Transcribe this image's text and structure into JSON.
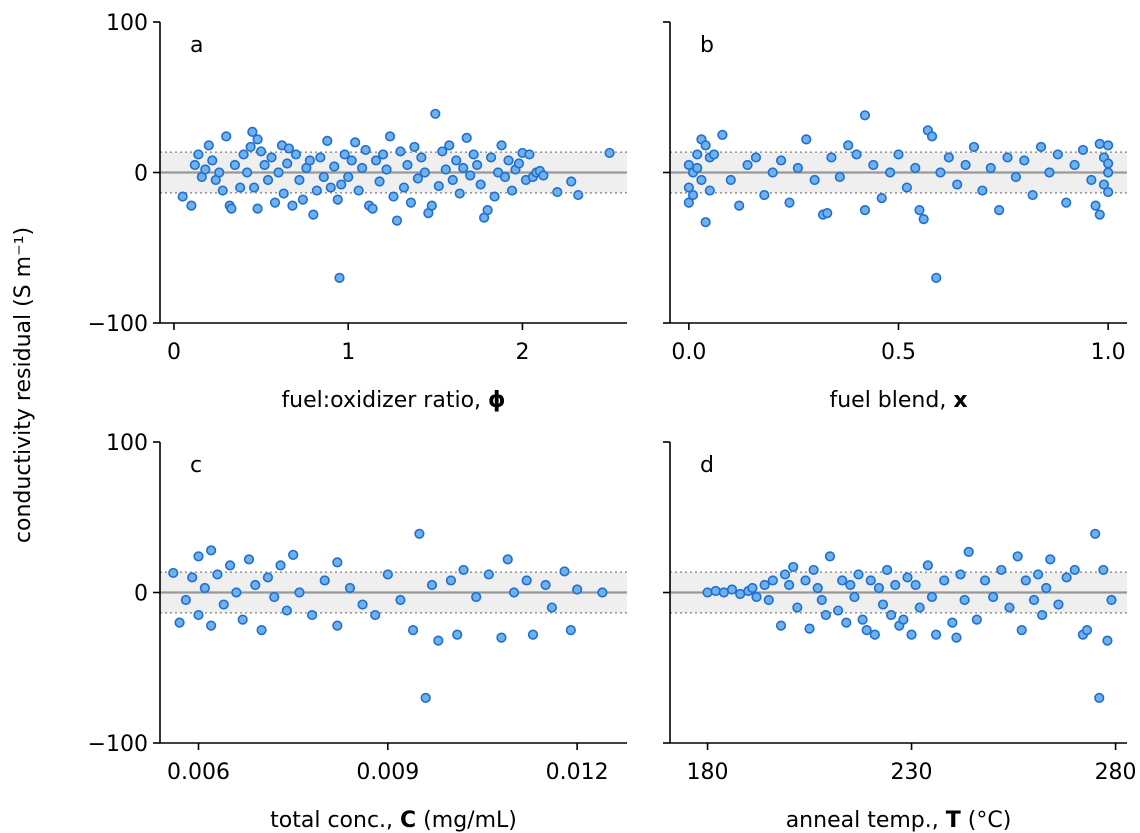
{
  "figure": {
    "ylabel": "conductivity residual (S m⁻¹)"
  },
  "style": {
    "marker_fill": "#6fb1ea",
    "marker_edge": "#1f6fd0",
    "band_fill": "#efefef",
    "zero_line": "#999999",
    "band_line": "#999999"
  },
  "chart_data": [
    {
      "type": "scatter",
      "panel": "a",
      "xlabel_parts": [
        {
          "text": "fuel:oxidizer ratio, ",
          "bold": false
        },
        {
          "text": "ϕ",
          "bold": true
        }
      ],
      "xlim": [
        -0.08,
        2.6
      ],
      "ylim": [
        -100,
        100
      ],
      "xticks": [
        0,
        1,
        2
      ],
      "xtick_labels": [
        "0",
        "1",
        "2"
      ],
      "yticks": [
        -100,
        0,
        100
      ],
      "ytick_labels": [
        "−100",
        "0",
        "100"
      ],
      "show_yticks": true,
      "band": [
        -13.5,
        13.5
      ],
      "points": [
        [
          0.05,
          -16
        ],
        [
          0.1,
          -22
        ],
        [
          0.12,
          5
        ],
        [
          0.14,
          12
        ],
        [
          0.16,
          -3
        ],
        [
          0.18,
          2
        ],
        [
          0.2,
          18
        ],
        [
          0.22,
          8
        ],
        [
          0.24,
          -5
        ],
        [
          0.26,
          0
        ],
        [
          0.28,
          -12
        ],
        [
          0.3,
          24
        ],
        [
          0.32,
          -22
        ],
        [
          0.33,
          -24
        ],
        [
          0.35,
          5
        ],
        [
          0.38,
          -10
        ],
        [
          0.4,
          12
        ],
        [
          0.42,
          0
        ],
        [
          0.44,
          17
        ],
        [
          0.45,
          27
        ],
        [
          0.46,
          -10
        ],
        [
          0.48,
          22
        ],
        [
          0.48,
          -24
        ],
        [
          0.5,
          14
        ],
        [
          0.52,
          5
        ],
        [
          0.54,
          -5
        ],
        [
          0.56,
          10
        ],
        [
          0.58,
          -20
        ],
        [
          0.6,
          0
        ],
        [
          0.62,
          18
        ],
        [
          0.63,
          -14
        ],
        [
          0.65,
          6
        ],
        [
          0.66,
          16
        ],
        [
          0.68,
          -22
        ],
        [
          0.7,
          12
        ],
        [
          0.72,
          -5
        ],
        [
          0.74,
          -18
        ],
        [
          0.76,
          3
        ],
        [
          0.78,
          8
        ],
        [
          0.8,
          -28
        ],
        [
          0.82,
          -12
        ],
        [
          0.84,
          10
        ],
        [
          0.86,
          -3
        ],
        [
          0.88,
          21
        ],
        [
          0.9,
          -10
        ],
        [
          0.92,
          4
        ],
        [
          0.94,
          -18
        ],
        [
          0.95,
          -70
        ],
        [
          0.96,
          -8
        ],
        [
          0.98,
          12
        ],
        [
          1.0,
          -3
        ],
        [
          1.02,
          8
        ],
        [
          1.04,
          20
        ],
        [
          1.06,
          -12
        ],
        [
          1.08,
          3
        ],
        [
          1.1,
          15
        ],
        [
          1.12,
          -22
        ],
        [
          1.14,
          -24
        ],
        [
          1.16,
          8
        ],
        [
          1.18,
          -6
        ],
        [
          1.2,
          12
        ],
        [
          1.22,
          2
        ],
        [
          1.24,
          24
        ],
        [
          1.26,
          -16
        ],
        [
          1.28,
          -32
        ],
        [
          1.3,
          14
        ],
        [
          1.32,
          -10
        ],
        [
          1.34,
          5
        ],
        [
          1.36,
          -20
        ],
        [
          1.38,
          17
        ],
        [
          1.4,
          -4
        ],
        [
          1.42,
          10
        ],
        [
          1.44,
          0
        ],
        [
          1.46,
          -27
        ],
        [
          1.48,
          -22
        ],
        [
          1.5,
          39
        ],
        [
          1.52,
          -9
        ],
        [
          1.54,
          14
        ],
        [
          1.56,
          2
        ],
        [
          1.58,
          18
        ],
        [
          1.6,
          -5
        ],
        [
          1.62,
          8
        ],
        [
          1.64,
          -14
        ],
        [
          1.66,
          3
        ],
        [
          1.68,
          23
        ],
        [
          1.7,
          -2
        ],
        [
          1.72,
          12
        ],
        [
          1.74,
          5
        ],
        [
          1.76,
          -8
        ],
        [
          1.78,
          -30
        ],
        [
          1.8,
          -25
        ],
        [
          1.82,
          10
        ],
        [
          1.84,
          -16
        ],
        [
          1.86,
          0
        ],
        [
          1.88,
          18
        ],
        [
          1.9,
          -3
        ],
        [
          1.92,
          8
        ],
        [
          1.94,
          -12
        ],
        [
          1.96,
          2
        ],
        [
          1.98,
          6
        ],
        [
          2.0,
          13
        ],
        [
          2.02,
          -5
        ],
        [
          2.04,
          12
        ],
        [
          2.06,
          -3
        ],
        [
          2.08,
          0
        ],
        [
          2.1,
          1
        ],
        [
          2.12,
          -2
        ],
        [
          2.2,
          -13
        ],
        [
          2.28,
          -6
        ],
        [
          2.32,
          -15
        ],
        [
          2.5,
          13
        ]
      ]
    },
    {
      "type": "scatter",
      "panel": "b",
      "xlabel_parts": [
        {
          "text": "fuel blend, ",
          "bold": false
        },
        {
          "text": "x",
          "bold": true
        }
      ],
      "xlim": [
        -0.045,
        1.045
      ],
      "ylim": [
        -100,
        100
      ],
      "xticks": [
        0.0,
        0.5,
        1.0
      ],
      "xtick_labels": [
        "0.0",
        "0.5",
        "1.0"
      ],
      "yticks": [
        -100,
        0,
        100
      ],
      "ytick_labels": [
        "",
        "",
        ""
      ],
      "show_yticks": false,
      "band": [
        -13.5,
        13.5
      ],
      "points": [
        [
          0.0,
          -20
        ],
        [
          0.0,
          5
        ],
        [
          0.0,
          -10
        ],
        [
          0.01,
          0
        ],
        [
          0.01,
          -15
        ],
        [
          0.02,
          12
        ],
        [
          0.02,
          3
        ],
        [
          0.03,
          22
        ],
        [
          0.03,
          -5
        ],
        [
          0.04,
          -33
        ],
        [
          0.04,
          18
        ],
        [
          0.05,
          -12
        ],
        [
          0.05,
          10
        ],
        [
          0.06,
          12
        ],
        [
          0.08,
          25
        ],
        [
          0.1,
          -5
        ],
        [
          0.12,
          -22
        ],
        [
          0.14,
          5
        ],
        [
          0.16,
          10
        ],
        [
          0.18,
          -15
        ],
        [
          0.2,
          0
        ],
        [
          0.22,
          8
        ],
        [
          0.24,
          -20
        ],
        [
          0.26,
          3
        ],
        [
          0.28,
          22
        ],
        [
          0.3,
          -5
        ],
        [
          0.32,
          -28
        ],
        [
          0.33,
          -27
        ],
        [
          0.34,
          10
        ],
        [
          0.36,
          -3
        ],
        [
          0.38,
          18
        ],
        [
          0.4,
          12
        ],
        [
          0.42,
          -25
        ],
        [
          0.42,
          38
        ],
        [
          0.44,
          5
        ],
        [
          0.46,
          -17
        ],
        [
          0.48,
          0
        ],
        [
          0.5,
          12
        ],
        [
          0.52,
          -10
        ],
        [
          0.54,
          3
        ],
        [
          0.55,
          -25
        ],
        [
          0.56,
          -31
        ],
        [
          0.57,
          28
        ],
        [
          0.58,
          24
        ],
        [
          0.59,
          -70
        ],
        [
          0.6,
          0
        ],
        [
          0.62,
          10
        ],
        [
          0.64,
          -8
        ],
        [
          0.66,
          5
        ],
        [
          0.68,
          17
        ],
        [
          0.7,
          -12
        ],
        [
          0.72,
          3
        ],
        [
          0.74,
          -25
        ],
        [
          0.76,
          10
        ],
        [
          0.78,
          -3
        ],
        [
          0.8,
          8
        ],
        [
          0.82,
          -15
        ],
        [
          0.84,
          17
        ],
        [
          0.86,
          0
        ],
        [
          0.88,
          12
        ],
        [
          0.9,
          -20
        ],
        [
          0.92,
          5
        ],
        [
          0.94,
          15
        ],
        [
          0.96,
          -5
        ],
        [
          0.97,
          -22
        ],
        [
          0.98,
          19
        ],
        [
          0.98,
          -28
        ],
        [
          0.99,
          10
        ],
        [
          0.99,
          -8
        ],
        [
          1.0,
          0
        ],
        [
          1.0,
          18
        ],
        [
          1.0,
          -13
        ],
        [
          1.0,
          6
        ]
      ]
    },
    {
      "type": "scatter",
      "panel": "c",
      "xlabel_parts": [
        {
          "text": "total conc., ",
          "bold": false
        },
        {
          "text": "C",
          "bold": true
        },
        {
          "text": " (mg/mL)",
          "bold": false
        }
      ],
      "xlim": [
        0.00539,
        0.01279
      ],
      "ylim": [
        -100,
        100
      ],
      "xticks": [
        0.006,
        0.009,
        0.012
      ],
      "xtick_labels": [
        "0.006",
        "0.009",
        "0.012"
      ],
      "yticks": [
        -100,
        0,
        100
      ],
      "ytick_labels": [
        "−100",
        "0",
        "100"
      ],
      "show_yticks": true,
      "band": [
        -13.5,
        13.5
      ],
      "points": [
        [
          0.0056,
          13
        ],
        [
          0.0057,
          -20
        ],
        [
          0.0058,
          -5
        ],
        [
          0.0059,
          10
        ],
        [
          0.006,
          24
        ],
        [
          0.006,
          -15
        ],
        [
          0.0061,
          3
        ],
        [
          0.0062,
          28
        ],
        [
          0.0062,
          -22
        ],
        [
          0.0063,
          12
        ],
        [
          0.0064,
          -8
        ],
        [
          0.0065,
          18
        ],
        [
          0.0066,
          0
        ],
        [
          0.0067,
          -18
        ],
        [
          0.0068,
          22
        ],
        [
          0.0069,
          5
        ],
        [
          0.007,
          -25
        ],
        [
          0.0071,
          10
        ],
        [
          0.0072,
          -3
        ],
        [
          0.0073,
          18
        ],
        [
          0.0074,
          -12
        ],
        [
          0.0075,
          25
        ],
        [
          0.0076,
          0
        ],
        [
          0.0078,
          -15
        ],
        [
          0.008,
          8
        ],
        [
          0.0082,
          -22
        ],
        [
          0.0082,
          20
        ],
        [
          0.0084,
          3
        ],
        [
          0.0086,
          -8
        ],
        [
          0.0088,
          -15
        ],
        [
          0.009,
          12
        ],
        [
          0.0092,
          -5
        ],
        [
          0.0094,
          -25
        ],
        [
          0.0095,
          39
        ],
        [
          0.0096,
          -70
        ],
        [
          0.0097,
          5
        ],
        [
          0.0098,
          -32
        ],
        [
          0.01,
          8
        ],
        [
          0.0101,
          -28
        ],
        [
          0.0102,
          15
        ],
        [
          0.0104,
          -3
        ],
        [
          0.0106,
          12
        ],
        [
          0.0108,
          -30
        ],
        [
          0.0109,
          22
        ],
        [
          0.011,
          0
        ],
        [
          0.0112,
          8
        ],
        [
          0.0113,
          -28
        ],
        [
          0.0115,
          5
        ],
        [
          0.0116,
          -10
        ],
        [
          0.0118,
          14
        ],
        [
          0.0119,
          -25
        ],
        [
          0.012,
          2
        ],
        [
          0.0124,
          0
        ]
      ]
    },
    {
      "type": "scatter",
      "panel": "d",
      "xlabel_parts": [
        {
          "text": "anneal temp., ",
          "bold": false
        },
        {
          "text": "T",
          "bold": true
        },
        {
          "text": " (°C)",
          "bold": false
        }
      ],
      "xlim": [
        170.8,
        282.8
      ],
      "ylim": [
        -100,
        100
      ],
      "xticks": [
        180,
        230,
        280
      ],
      "xtick_labels": [
        "180",
        "230",
        "280"
      ],
      "yticks": [
        -100,
        0,
        100
      ],
      "ytick_labels": [
        "",
        "",
        ""
      ],
      "show_yticks": false,
      "band": [
        -13.5,
        13.5
      ],
      "points": [
        [
          180,
          0
        ],
        [
          182,
          1
        ],
        [
          184,
          0
        ],
        [
          186,
          2
        ],
        [
          188,
          -1
        ],
        [
          190,
          1
        ],
        [
          191,
          3
        ],
        [
          192,
          -3
        ],
        [
          194,
          5
        ],
        [
          195,
          -5
        ],
        [
          196,
          8
        ],
        [
          198,
          -22
        ],
        [
          199,
          12
        ],
        [
          200,
          5
        ],
        [
          201,
          17
        ],
        [
          202,
          -10
        ],
        [
          204,
          8
        ],
        [
          205,
          -24
        ],
        [
          206,
          15
        ],
        [
          207,
          3
        ],
        [
          208,
          -5
        ],
        [
          209,
          -15
        ],
        [
          210,
          24
        ],
        [
          212,
          -12
        ],
        [
          213,
          8
        ],
        [
          214,
          -20
        ],
        [
          215,
          5
        ],
        [
          216,
          -3
        ],
        [
          217,
          12
        ],
        [
          218,
          -18
        ],
        [
          219,
          -25
        ],
        [
          220,
          8
        ],
        [
          221,
          -28
        ],
        [
          222,
          3
        ],
        [
          223,
          -8
        ],
        [
          224,
          15
        ],
        [
          225,
          -15
        ],
        [
          226,
          5
        ],
        [
          227,
          -22
        ],
        [
          228,
          -18
        ],
        [
          229,
          10
        ],
        [
          230,
          -28
        ],
        [
          231,
          5
        ],
        [
          232,
          -10
        ],
        [
          234,
          18
        ],
        [
          235,
          -3
        ],
        [
          236,
          -28
        ],
        [
          238,
          8
        ],
        [
          240,
          -20
        ],
        [
          241,
          -30
        ],
        [
          242,
          12
        ],
        [
          243,
          -5
        ],
        [
          244,
          27
        ],
        [
          246,
          -18
        ],
        [
          248,
          8
        ],
        [
          250,
          -3
        ],
        [
          252,
          15
        ],
        [
          254,
          -10
        ],
        [
          256,
          24
        ],
        [
          257,
          -25
        ],
        [
          258,
          8
        ],
        [
          260,
          -5
        ],
        [
          261,
          12
        ],
        [
          262,
          -15
        ],
        [
          263,
          3
        ],
        [
          264,
          22
        ],
        [
          266,
          -8
        ],
        [
          268,
          10
        ],
        [
          270,
          15
        ],
        [
          272,
          -28
        ],
        [
          273,
          -25
        ],
        [
          275,
          39
        ],
        [
          276,
          -70
        ],
        [
          277,
          15
        ],
        [
          278,
          -32
        ],
        [
          279,
          -5
        ]
      ]
    }
  ]
}
